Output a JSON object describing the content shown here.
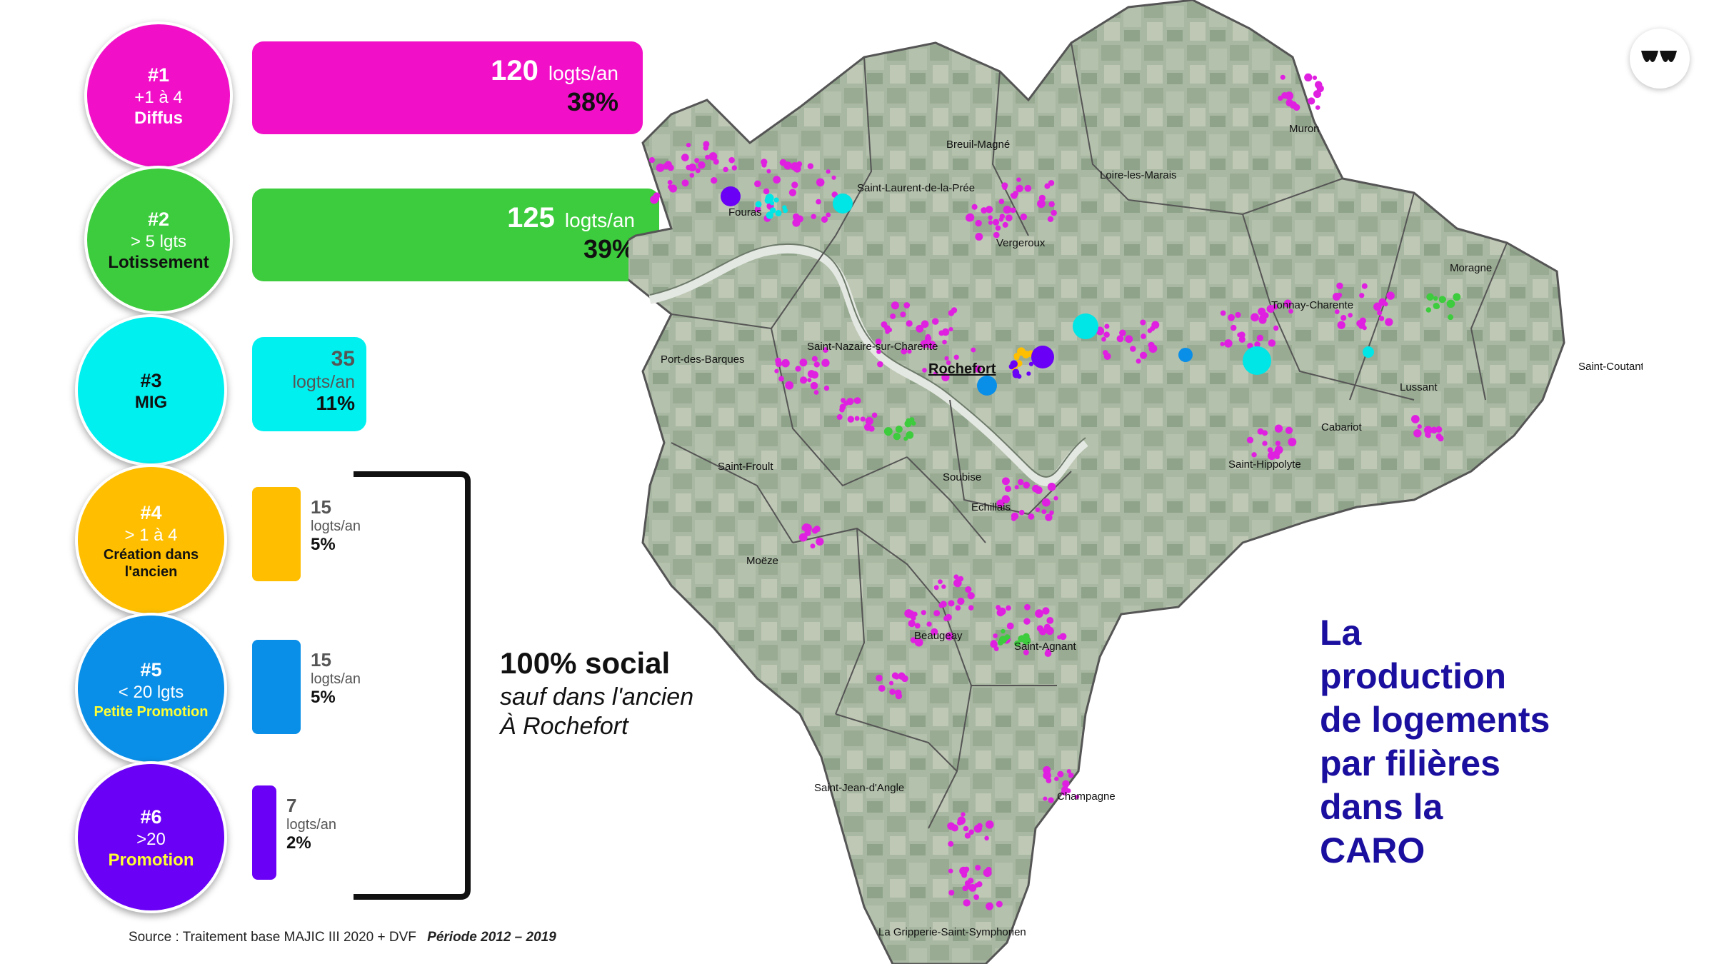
{
  "categories": [
    {
      "rank": "#1",
      "sub": "+1 à 4",
      "label": "Diffus",
      "circle_color": "#f20fc8",
      "text_color": "#ffffff",
      "label_color": "#ffffff",
      "value": "120",
      "unit": "logts/an",
      "percent": "38%",
      "share": 0.38
    },
    {
      "rank": "#2",
      "sub": "> 5 lgts",
      "label": "Lotissement",
      "circle_color": "#3dcc3d",
      "text_color": "#ffffff",
      "label_color": "#111111",
      "value": "125",
      "unit": "logts/an",
      "percent": "39%",
      "share": 0.39
    },
    {
      "rank": "#3",
      "sub": "",
      "label": "MIG",
      "circle_color": "#00f0f0",
      "text_color": "#111111",
      "label_color": "#111111",
      "value": "35",
      "unit": "logts/an",
      "percent": "11%",
      "share": 0.11
    },
    {
      "rank": "#4",
      "sub": "> 1 à 4",
      "label": "Création dans l'ancien",
      "circle_color": "#ffbf00",
      "text_color": "#ffffff",
      "label_color": "#111111",
      "value": "15",
      "unit": "logts/an",
      "percent": "5%",
      "share": 0.05
    },
    {
      "rank": "#5",
      "sub": "< 20 lgts",
      "label": "Petite Promotion",
      "circle_color": "#0a8fe8",
      "text_color": "#ffffff",
      "label_color": "#ffff33",
      "value": "15",
      "unit": "logts/an",
      "percent": "5%",
      "share": 0.05
    },
    {
      "rank": "#6",
      "sub": ">20",
      "label": "Promotion",
      "circle_color": "#6a00f5",
      "text_color": "#ffffff",
      "label_color": "#ffff33",
      "value": "7",
      "unit": "logts/an",
      "percent": "2%",
      "share": 0.02
    }
  ],
  "chart_data": {
    "type": "bar",
    "categories": [
      "Diffus",
      "Lotissement",
      "MIG",
      "Création dans l'ancien",
      "Petite Promotion",
      "Promotion"
    ],
    "values": [
      120,
      125,
      35,
      15,
      15,
      7
    ],
    "percent": [
      38,
      39,
      11,
      5,
      5,
      2
    ],
    "unit": "logts/an",
    "orientation": "horizontal"
  },
  "bracket": {
    "headline": "100% social",
    "line1": "sauf dans l'ancien",
    "line2": "À Rochefort"
  },
  "source": {
    "text": "Source : Traitement base MAJIC III 2020 + DVF",
    "period": "Période 2012 – 2019"
  },
  "title_lines": [
    "La",
    "production",
    "de logements",
    "par filières",
    "dans la",
    "CARO"
  ],
  "title_color": "#1a0f9e",
  "map": {
    "places": [
      "Muron",
      "Breuil-Magné",
      "Loire-les-Marais",
      "Saint-Laurent-de-la-Prée",
      "Fouras",
      "Vergeroux",
      "Moragne",
      "Tonnay-Charente",
      "Port-des-Barques",
      "Saint-Nazaire-sur-Charente",
      "Rochefort",
      "Saint-Coutant-le-Grand",
      "Lussant",
      "Cabariot",
      "Saint-Froult",
      "Soubise",
      "Saint-Hippolyte",
      "Echillais",
      "Moëze",
      "Beaugeay",
      "Saint-Agnant",
      "Saint-Jean-d'Angle",
      "Champagne",
      "La Gripperie-Saint-Symphorien"
    ]
  },
  "logo_icon": "wave-logo-icon"
}
